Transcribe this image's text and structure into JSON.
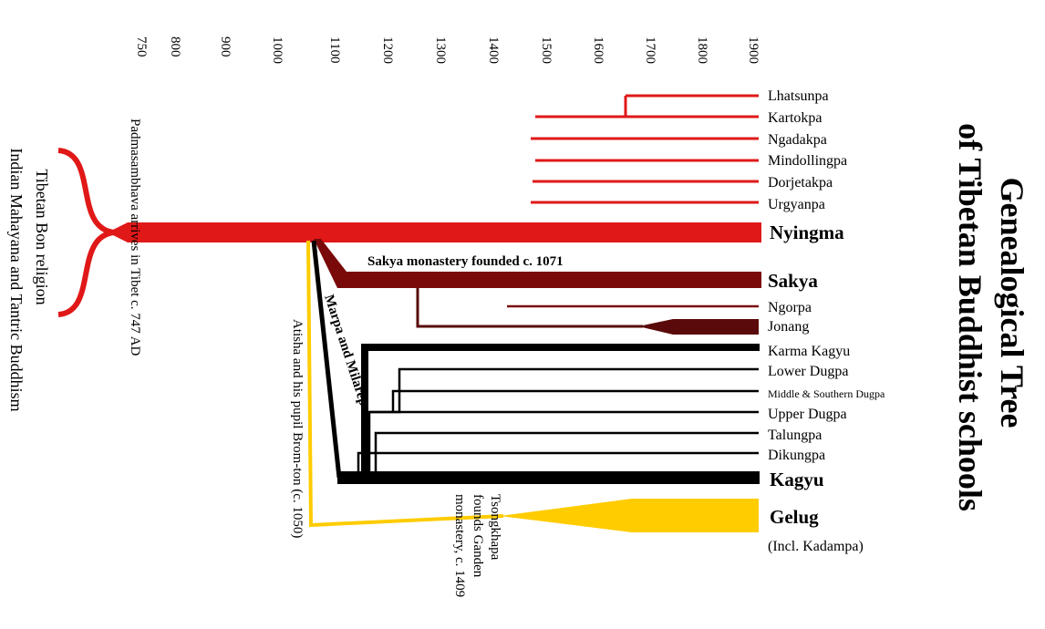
{
  "title": {
    "line1": "Genealogical Tree",
    "line2": "of Tibetan Buddhist schools"
  },
  "timeline": {
    "years": [
      "750",
      "800",
      "900",
      "1000",
      "1100",
      "1200",
      "1300",
      "1400",
      "1500",
      "1600",
      "1700",
      "1800",
      "1900"
    ]
  },
  "origins": {
    "line1": "Tibetan Bon religion",
    "line2": "Indian Mahayana and Tantric Buddhism"
  },
  "annotations": {
    "padmasambhava": "Padmasambhava arrives in Tibet c. 747 AD",
    "sakya_founded": "Sakya monastery founded c. 1071",
    "marpa": "Marpa and Milarepa",
    "atisha": "Atisha and his pupil Brom-ton (c. 1050)",
    "tsongkhapa": [
      "Tsongkhapa",
      "founds Ganden",
      "monastery, c. 1409"
    ]
  },
  "schools": {
    "lhatsunpa": "Lhatsunpa",
    "kartokpa": "Kartokpa",
    "ngadakpa": "Ngadakpa",
    "mindollingpa": "Mindollingpa",
    "dorjetakpa": "Dorjetakpa",
    "urgyanpa": "Urgyanpa",
    "nyingma": "Nyingma",
    "sakya": "Sakya",
    "ngorpa": "Ngorpa",
    "jonang": "Jonang",
    "karma_kagyu": "Karma Kagyu",
    "lower_dugpa": "Lower Dugpa",
    "middle_southern_dugpa": "Middle & Southern Dugpa",
    "upper_dugpa": "Upper Dugpa",
    "talungpa": "Talungpa",
    "dikungpa": "Dikungpa",
    "kagyu": "Kagyu",
    "gelug": "Gelug",
    "gelug_note": "(Incl. Kadampa)"
  },
  "colors": {
    "nyingma": "#e01818",
    "sakya": "#7a0a0a",
    "jonang": "#5a0a0a",
    "kagyu": "#000000",
    "gelug": "#ffcc00"
  }
}
